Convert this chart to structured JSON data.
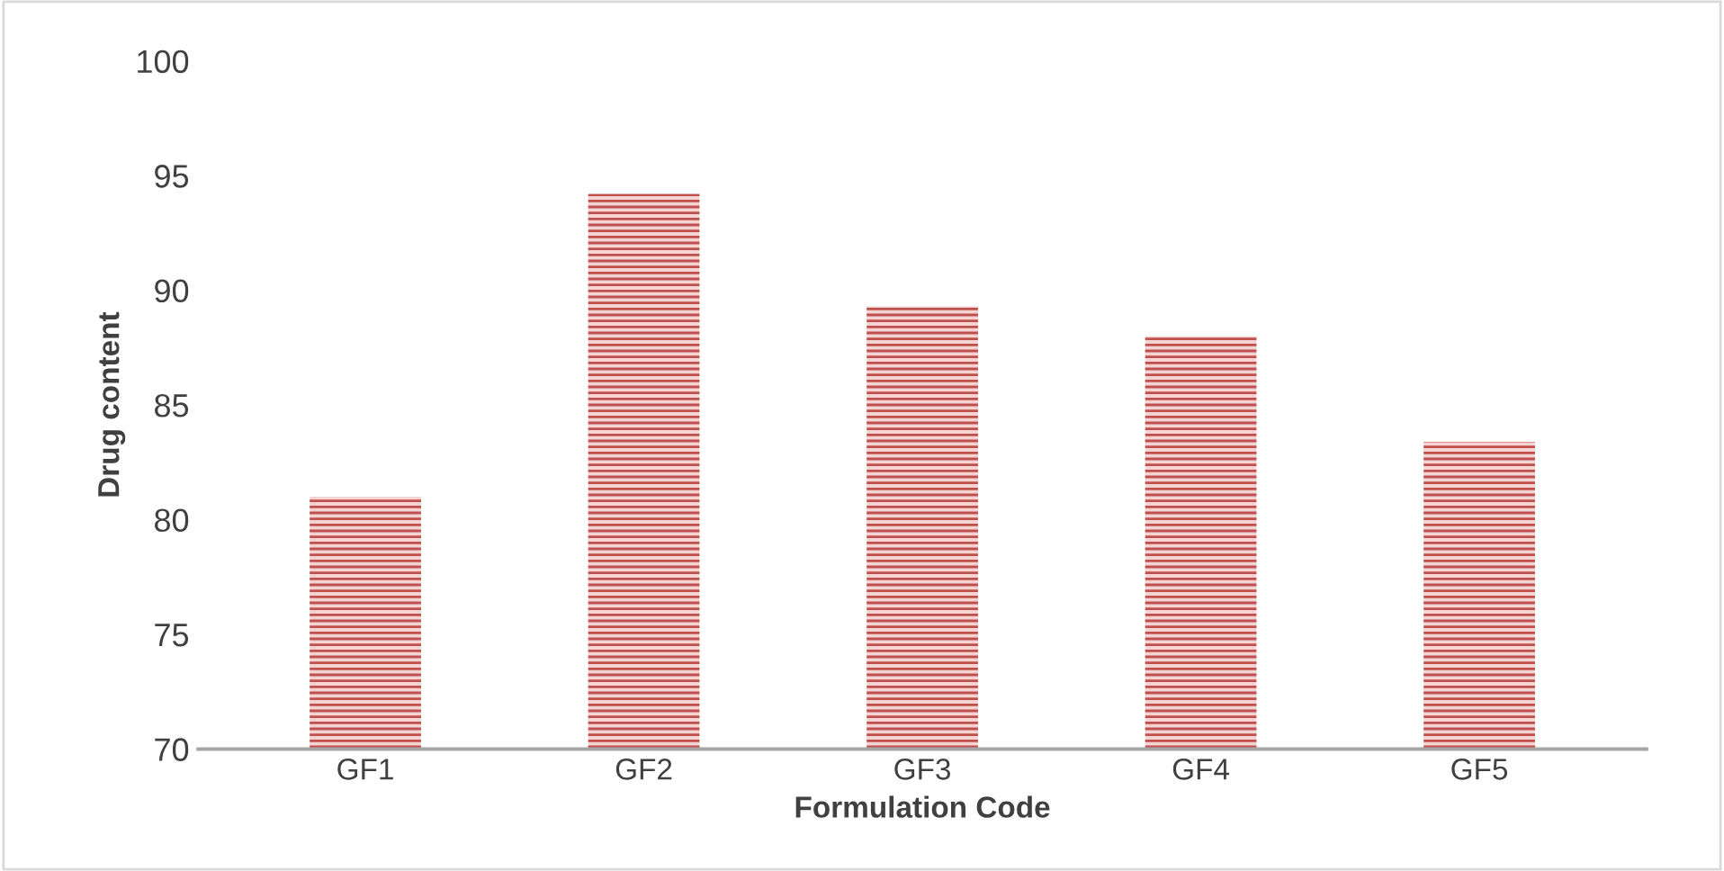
{
  "chart_data": {
    "type": "bar",
    "xlabel": "Formulation Code",
    "ylabel": "Drug content",
    "categories": [
      "GF1",
      "GF2",
      "GF3",
      "GF4",
      "GF5"
    ],
    "values": [
      81.0,
      94.2,
      89.3,
      88.0,
      83.4
    ],
    "color": "#c0504d",
    "ylim": [
      70,
      100
    ],
    "yticks": [
      70,
      75,
      80,
      85,
      90,
      95,
      100
    ],
    "grid": false,
    "legend": false
  }
}
